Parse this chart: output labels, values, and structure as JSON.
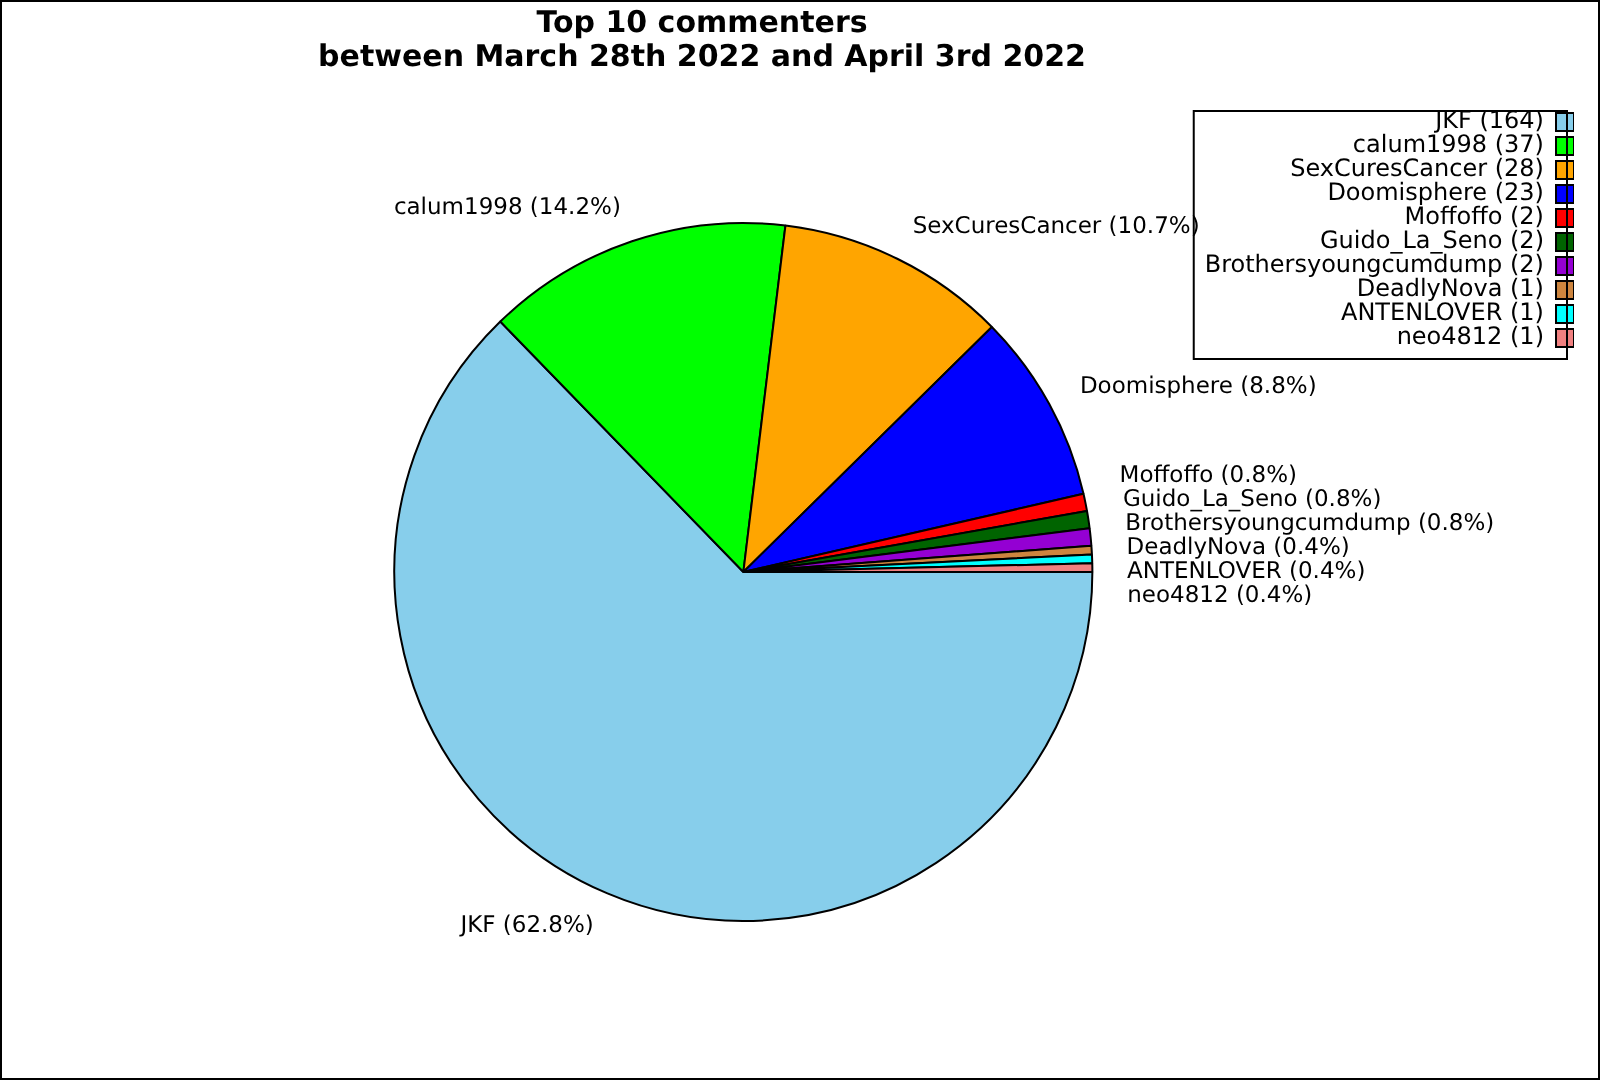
{
  "chart_data": {
    "type": "pie",
    "title": "Top 10 commenters",
    "subtitle": "between March 28th 2022 and April 3rd 2022",
    "categories": [
      "JKF (164)",
      "calum1998 (37)",
      "SexCuresCancer (28)",
      "Doomisphere (23)",
      "Moffoffo (2)",
      "Guido_La_Seno (2)",
      "Brothersyoungcumdump (2)",
      "DeadlyNova (1)",
      "ANTENLOVER (1)",
      "neo4812 (1)"
    ],
    "values": [
      62.8,
      14.2,
      10.7,
      8.8,
      0.8,
      0.8,
      0.8,
      0.4,
      0.4,
      0.4
    ],
    "value_labels": [
      "JKF (62.8%)",
      "calum1998 (14.2%)",
      "SexCuresCancer (10.7%)",
      "Doomisphere (8.8%)",
      "Moffoffo (0.8%)",
      "Guido_La_Seno (0.8%)",
      "Brothersyoungcumdump (0.8%)",
      "DeadlyNova (0.4%)",
      "ANTENLOVER (0.4%)",
      "neo4812 (0.4%)"
    ],
    "colors": [
      "#87ceeb",
      "#00ff00",
      "#ffa500",
      "#0000ff",
      "#ff0000",
      "#006400",
      "#9400d3",
      "#cd853f",
      "#00ffff",
      "#f08080"
    ],
    "legend": "top right"
  }
}
